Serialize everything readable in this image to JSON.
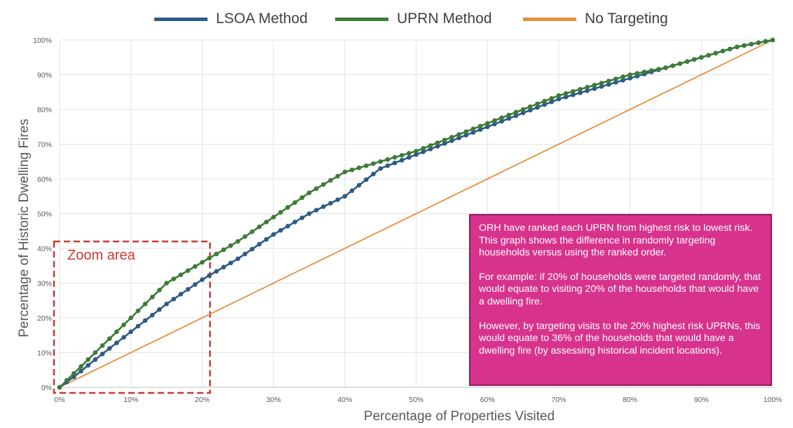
{
  "chart_data": {
    "type": "line",
    "title": "",
    "xlabel": "Percentage of Properties Visited",
    "ylabel": "Percentage of Historic Dwelling Fires",
    "xlim": [
      0,
      100
    ],
    "ylim": [
      0,
      100
    ],
    "x_tick_labels": [
      "0%",
      "10%",
      "20%",
      "30%",
      "40%",
      "50%",
      "60%",
      "70%",
      "80%",
      "90%",
      "100%"
    ],
    "y_tick_labels": [
      "0%",
      "10%",
      "20%",
      "30%",
      "40%",
      "50%",
      "60%",
      "70%",
      "80%",
      "90%",
      "100%"
    ],
    "grid": true,
    "legend_position": "top",
    "series": [
      {
        "name": "LSOA Method",
        "color": "#2e5b86",
        "markers": true,
        "x": [
          0,
          2,
          5,
          10,
          15,
          20,
          25,
          30,
          35,
          40,
          45,
          50,
          55,
          60,
          65,
          70,
          75,
          80,
          85,
          90,
          95,
          100
        ],
        "values": [
          0,
          3,
          8,
          16,
          24,
          31,
          37,
          44,
          50,
          55,
          63,
          67,
          71,
          75,
          79,
          83,
          86,
          89,
          92,
          95,
          98,
          100
        ]
      },
      {
        "name": "UPRN Method",
        "color": "#3e7a38",
        "markers": true,
        "x": [
          0,
          2,
          5,
          10,
          15,
          20,
          25,
          30,
          35,
          40,
          45,
          50,
          55,
          60,
          65,
          70,
          75,
          80,
          85,
          90,
          95,
          100
        ],
        "values": [
          0,
          4,
          10,
          20,
          30,
          36,
          42,
          49,
          56,
          62,
          65,
          68,
          72,
          76,
          80,
          84,
          87,
          90,
          92,
          95,
          98,
          100
        ]
      },
      {
        "name": "No Targeting",
        "color": "#e58f3c",
        "markers": false,
        "x": [
          0,
          100
        ],
        "values": [
          0,
          100
        ]
      }
    ],
    "annotations": {
      "zoom_label": "Zoom area",
      "note_paragraphs": [
        "ORH have ranked each UPRN from highest risk to lowest risk.  This graph shows the difference in randomly targeting households versus using the ranked order.",
        "For example: if 20% of households were targeted randomly, that would equate to visiting 20% of the households that would have a dwelling fire.",
        "However, by targeting visits to the 20% highest risk UPRNs, this would equate to 36% of the households that would have a dwelling fire (by assessing historical incident locations)."
      ]
    },
    "colors": {
      "note_background": "#d7338d",
      "zoom_box": "#c83a32"
    }
  }
}
